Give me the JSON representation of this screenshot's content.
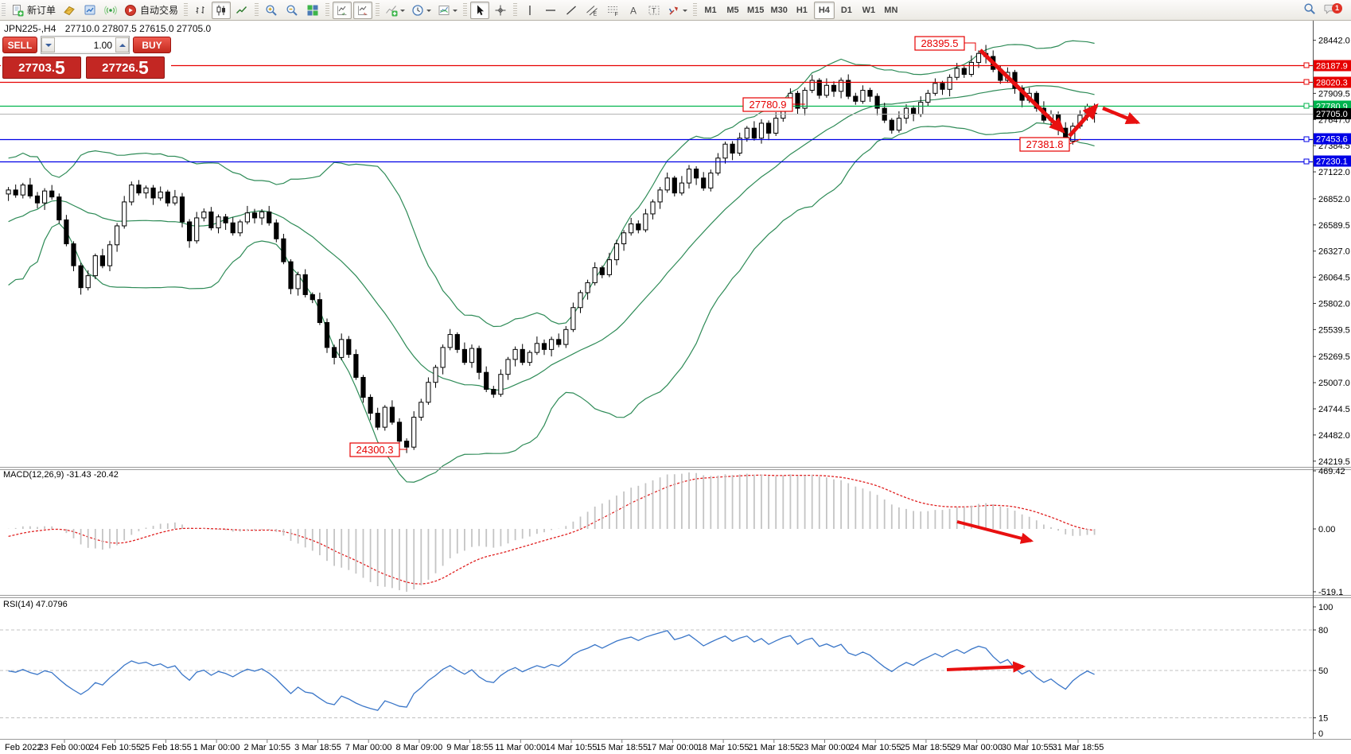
{
  "toolbar": {
    "notification_count": "1",
    "active_timeframe": "H4",
    "timeframes": [
      "M1",
      "M5",
      "M15",
      "M30",
      "H1",
      "H4",
      "D1",
      "W1",
      "MN"
    ],
    "groups": [
      [
        {
          "name": "new-order-button",
          "icon": "new-order-icon",
          "label": "新订单"
        },
        {
          "name": "mql-community-button",
          "icon": "gold-book-icon"
        },
        {
          "name": "market-watch-button",
          "icon": "market-watch-icon"
        },
        {
          "name": "signals-button",
          "icon": "signals-icon"
        },
        {
          "name": "autotrading-button",
          "icon": "autotrading-icon",
          "label": "自动交易"
        }
      ],
      [
        {
          "name": "bar-chart-button",
          "icon": "bar-chart-icon"
        },
        {
          "name": "candlestick-chart-button",
          "icon": "candles-icon",
          "pressed": true
        },
        {
          "name": "line-chart-button",
          "icon": "line-chart-icon"
        }
      ],
      [
        {
          "name": "zoom-in-button",
          "icon": "zoom-in-icon"
        },
        {
          "name": "zoom-out-button",
          "icon": "zoom-out-icon"
        },
        {
          "name": "tile-windows-button",
          "icon": "tile-windows-icon"
        }
      ],
      [
        {
          "name": "auto-scroll-button",
          "icon": "auto-scroll-icon",
          "pressed": true
        },
        {
          "name": "chart-shift-button",
          "icon": "chart-shift-icon",
          "pressed": true
        }
      ],
      [
        {
          "name": "indicators-button",
          "icon": "indicators-icon",
          "dropdown": true
        },
        {
          "name": "periods-button",
          "icon": "clock-icon",
          "dropdown": true
        },
        {
          "name": "templates-button",
          "icon": "template-icon",
          "dropdown": true
        }
      ],
      [
        {
          "name": "cursor-button",
          "icon": "cursor-icon",
          "pressed": true
        },
        {
          "name": "crosshair-button",
          "icon": "crosshair-icon"
        }
      ],
      [
        {
          "name": "vertical-line-button",
          "icon": "vline-icon"
        },
        {
          "name": "horizontal-line-button",
          "icon": "hline-icon"
        },
        {
          "name": "trendline-button",
          "icon": "trendline-icon"
        },
        {
          "name": "equidistant-channel-button",
          "icon": "channel-icon"
        },
        {
          "name": "fibonacci-button",
          "icon": "fibonacci-icon"
        },
        {
          "name": "text-button",
          "icon": "text-icon"
        },
        {
          "name": "text-label-button",
          "icon": "text-label-icon"
        },
        {
          "name": "arrow-objects-button",
          "icon": "arrow-objects-icon",
          "dropdown": true
        }
      ]
    ]
  },
  "chart": {
    "symbol_period": "JPN225-,H4",
    "ohlc_text": "27710.0 27807.5 27615.0 27705.0",
    "one_click": {
      "sell_label": "SELL",
      "buy_label": "BUY",
      "volume": "1.00",
      "sell_price": "27703.",
      "sell_price_fraction": "5",
      "buy_price": "27726.",
      "buy_price_fraction": "5"
    }
  },
  "chart_data": {
    "type": "candlestick",
    "symbol": "JPN225-",
    "timeframe": "H4",
    "current_ohlc": {
      "open": 27710.0,
      "high": 27807.5,
      "low": 27615.0,
      "close": 27705.0
    },
    "bid": 27703.5,
    "ask": 27726.5,
    "ylim": [
      24170,
      28640
    ],
    "price_ticks": [
      28442.0,
      27909.5,
      27647.0,
      27384.5,
      27122.0,
      26852.0,
      26589.5,
      26327.0,
      26064.5,
      25802.0,
      25539.5,
      25269.5,
      25007.0,
      24744.5,
      24482.0,
      24219.5
    ],
    "hlines": [
      {
        "price": 28187.9,
        "color": "#e60000"
      },
      {
        "price": 28020.3,
        "color": "#e60000"
      },
      {
        "price": 27780.9,
        "color": "#00b44e"
      },
      {
        "price": 27705.0,
        "color": "#000000",
        "line_color": "#b4b4b4",
        "current": true
      },
      {
        "price": 27453.6,
        "color": "#0000e6"
      },
      {
        "price": 27230.1,
        "color": "#0000e6"
      }
    ],
    "annotations": [
      "28395.5",
      "27780.9",
      "27381.8",
      "24300.3"
    ],
    "time_labels": [
      "Feb 2022",
      "23 Feb 00:00",
      "24 Feb 10:55",
      "25 Feb 18:55",
      "1 Mar 00:00",
      "2 Mar 10:55",
      "3 Mar 18:55",
      "7 Mar 00:00",
      "8 Mar 09:00",
      "9 Mar 18:55",
      "11 Mar 00:00",
      "14 Mar 10:55",
      "15 Mar 18:55",
      "17 Mar 00:00",
      "18 Mar 10:55",
      "21 Mar 18:55",
      "23 Mar 00:00",
      "24 Mar 10:55",
      "25 Mar 18:55",
      "29 Mar 00:00",
      "30 Mar 10:55",
      "31 Mar 18:55"
    ],
    "first_open": 26900,
    "pre_closes": [
      27450,
      27300,
      27400,
      27150,
      26950,
      27100,
      26800,
      26650,
      26800,
      26500,
      26700,
      26200,
      26550,
      26000,
      26350,
      25900,
      26250,
      26500,
      26700,
      26900,
      26650,
      26850,
      26550,
      26950,
      26750,
      26880,
      26820,
      26920,
      26860,
      26930
    ],
    "closes": [
      26940,
      26890,
      26990,
      26880,
      26810,
      26930,
      26870,
      26640,
      26400,
      26180,
      25960,
      26080,
      26280,
      26180,
      26390,
      26580,
      26820,
      26990,
      26910,
      26960,
      26860,
      26920,
      26810,
      26870,
      26620,
      26430,
      26660,
      26720,
      26560,
      26670,
      26610,
      26510,
      26620,
      26710,
      26660,
      26720,
      26610,
      26450,
      26220,
      25950,
      26090,
      25890,
      25840,
      25610,
      25360,
      25260,
      25440,
      25290,
      25060,
      24860,
      24700,
      24560,
      24760,
      24610,
      24420,
      24360,
      24660,
      24810,
      25010,
      25160,
      25360,
      25490,
      25340,
      25210,
      25350,
      25110,
      24940,
      24890,
      25090,
      25240,
      25340,
      25210,
      25310,
      25400,
      25340,
      25440,
      25390,
      25540,
      25760,
      25910,
      26010,
      26160,
      26090,
      26240,
      26400,
      26510,
      26600,
      26540,
      26700,
      26820,
      26940,
      27060,
      26910,
      27010,
      27150,
      27060,
      26960,
      27110,
      27260,
      27400,
      27310,
      27460,
      27560,
      27460,
      27610,
      27510,
      27660,
      27810,
      27910,
      27760,
      27940,
      28040,
      27890,
      27990,
      27930,
      28040,
      27880,
      27830,
      27940,
      27880,
      27760,
      27640,
      27540,
      27660,
      27760,
      27700,
      27820,
      27910,
      28010,
      27950,
      28070,
      28160,
      28100,
      28220,
      28310,
      28280,
      28150,
      28040,
      28120,
      27960,
      27840,
      27910,
      27760,
      27640,
      27700,
      27560,
      27430,
      27580,
      27690,
      27780,
      27705
    ],
    "specials": {
      "55": {
        "low": 24300.3
      },
      "134": {
        "high": 28340.0
      },
      "135": {
        "high": 28395.5
      },
      "146": {
        "low": 27381.8
      },
      "150": {
        "open": 27710.0,
        "high": 27807.5,
        "low": 27615.0,
        "close": 27705.0
      }
    },
    "bollinger": {
      "period": 20,
      "deviation": 2,
      "color": "#2e8b57"
    },
    "macd": {
      "title": "MACD(12,26,9)",
      "values": "-31.43 -20.42",
      "axis_labels": [
        "469.42",
        "0.00",
        "-519.1"
      ]
    },
    "rsi": {
      "title": "RSI(14)",
      "value": "47.0796",
      "axis_labels": [
        "100",
        "80",
        "50",
        "15",
        "0"
      ],
      "levels": [
        80,
        50,
        15
      ]
    }
  }
}
